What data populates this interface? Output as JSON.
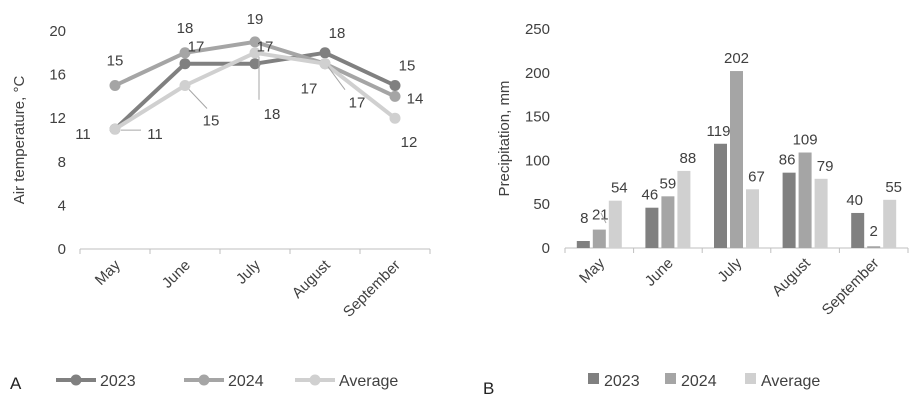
{
  "colors": {
    "2023": "#808080",
    "2024": "#a5a5a5",
    "Average": "#d0d0d0",
    "axis": "#bfbfbf"
  },
  "chart_data": [
    {
      "panel_label": "A",
      "type": "line",
      "categories": [
        "May",
        "June",
        "July",
        "August",
        "September"
      ],
      "ylabel": "Air temperature, °C",
      "ylim": [
        0,
        20
      ],
      "yticks": [
        0,
        4,
        8,
        12,
        16,
        20
      ],
      "grid": false,
      "legend_position": "bottom",
      "series": [
        {
          "name": "2023",
          "values": [
            11,
            17,
            17,
            18,
            15
          ]
        },
        {
          "name": "2024",
          "values": [
            15,
            18,
            19,
            17,
            14
          ]
        },
        {
          "name": "Average",
          "values": [
            11,
            15,
            18,
            17,
            12
          ]
        }
      ]
    },
    {
      "panel_label": "B",
      "type": "bar",
      "categories": [
        "May",
        "June",
        "July",
        "August",
        "September"
      ],
      "ylabel": "Precipitation, mm",
      "ylim": [
        0,
        250
      ],
      "yticks": [
        0,
        50,
        100,
        150,
        200,
        250
      ],
      "grid": false,
      "legend_position": "bottom",
      "series": [
        {
          "name": "2023",
          "values": [
            8,
            46,
            119,
            86,
            40
          ]
        },
        {
          "name": "2024",
          "values": [
            21,
            59,
            202,
            109,
            2
          ]
        },
        {
          "name": "Average",
          "values": [
            54,
            88,
            67,
            79,
            55
          ]
        }
      ]
    }
  ]
}
